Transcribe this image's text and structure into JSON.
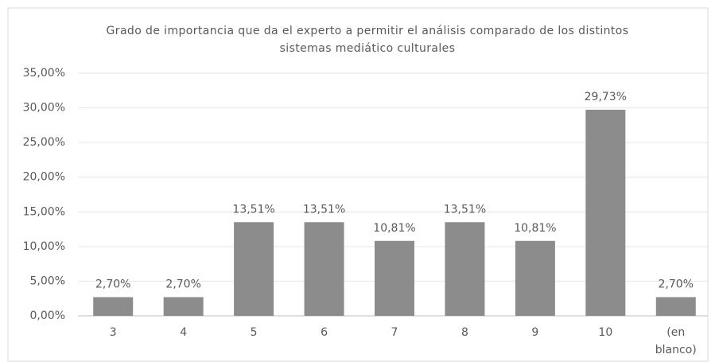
{
  "chart_data": {
    "type": "bar",
    "title": "Grado de importancia que da el experto a permitir el análisis comparado de los distintos sistemas mediático culturales",
    "categories": [
      "3",
      "4",
      "5",
      "6",
      "7",
      "8",
      "9",
      "10",
      "(en blanco)"
    ],
    "values": [
      2.7,
      2.7,
      13.51,
      13.51,
      10.81,
      13.51,
      10.81,
      29.73,
      2.7
    ],
    "value_labels": [
      "2,70%",
      "2,70%",
      "13,51%",
      "13,51%",
      "10,81%",
      "13,51%",
      "10,81%",
      "29,73%",
      "2,70%"
    ],
    "color": "#8c8c8c",
    "ylim": [
      0,
      35
    ],
    "yticks": [
      {
        "value": 0,
        "label": "0,00%"
      },
      {
        "value": 5,
        "label": "5,00%"
      },
      {
        "value": 10,
        "label": "10,00%"
      },
      {
        "value": 15,
        "label": "15,00%"
      },
      {
        "value": 20,
        "label": "20,00%"
      },
      {
        "value": 25,
        "label": "25,00%"
      },
      {
        "value": 30,
        "label": "30,00%"
      },
      {
        "value": 35,
        "label": "35,00%"
      }
    ],
    "grid": true
  }
}
